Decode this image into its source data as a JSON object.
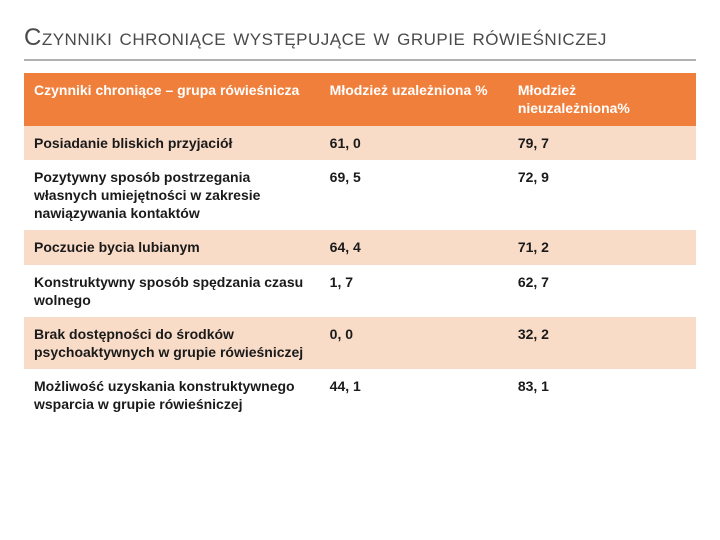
{
  "title": "Czynniki chroniące występujące w grupie rówieśniczej",
  "table": {
    "columns": [
      "Czynniki chroniące  – grupa rówieśnicza",
      "Młodzież uzależniona %",
      "Młodzież nieuzależniona%"
    ],
    "rows": [
      [
        "Posiadanie bliskich przyjaciół",
        "61, 0",
        "79, 7"
      ],
      [
        "Pozytywny sposób postrzegania własnych umiejętności w zakresie nawiązywania kontaktów",
        "69, 5",
        "72, 9"
      ],
      [
        "Poczucie bycia lubianym",
        "64, 4",
        "71, 2"
      ],
      [
        "Konstruktywny sposób spędzania czasu wolnego",
        "1, 7",
        "62, 7"
      ],
      [
        "Brak dostępności do środków psychoaktywnych w grupie rówieśniczej",
        "0, 0",
        "32, 2"
      ],
      [
        "Możliwość uzyskania konstruktywnego wsparcia w grupie rówieśniczej",
        "44, 1",
        "83, 1"
      ]
    ],
    "header_bg": "#f07f3c",
    "row_alt_bg": "#f9dcc8",
    "row_bg": "#ffffff",
    "text_color": "#1a1a1a",
    "header_text_color": "#ffffff",
    "font_size": 14,
    "col_widths_pct": [
      44,
      28,
      28
    ]
  },
  "rule_color": "#b0b0b0",
  "title_color": "#4a4a4a"
}
